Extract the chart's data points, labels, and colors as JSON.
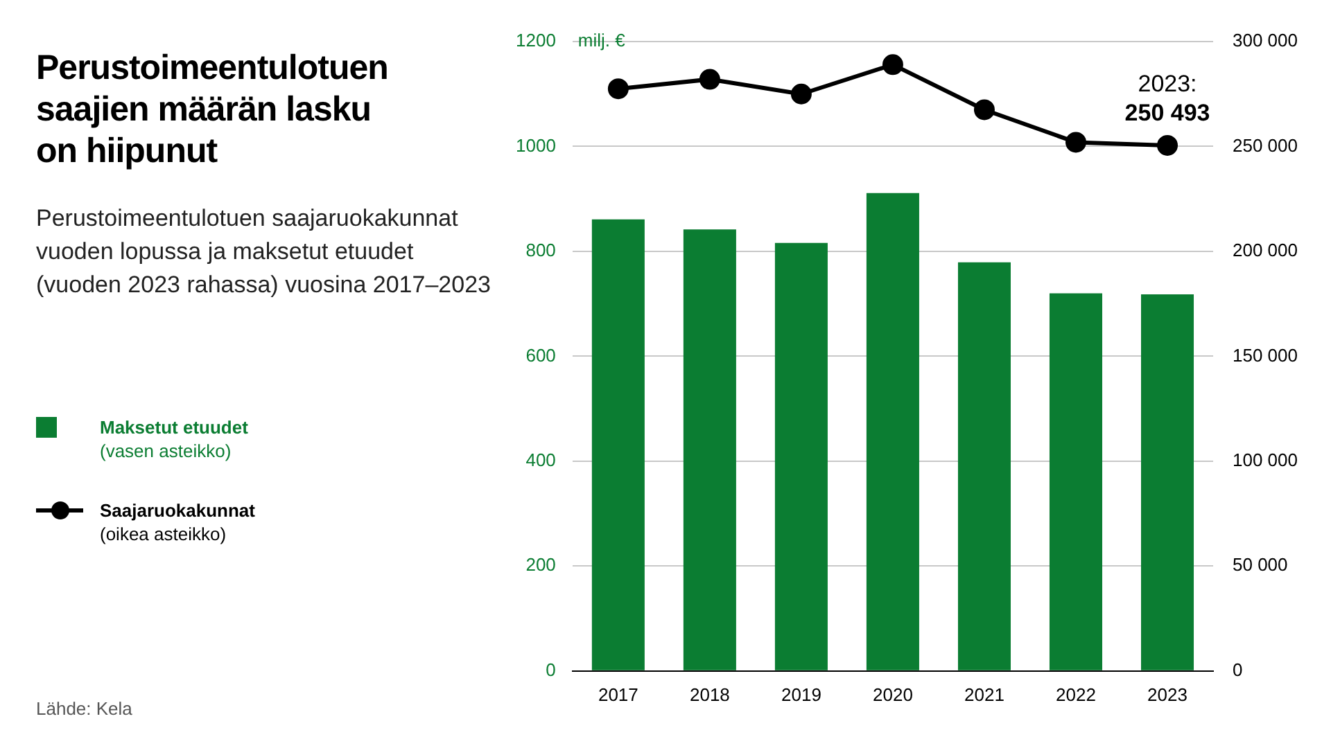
{
  "chart_data": {
    "type": "bar",
    "title": "Perustoimeentulotuen saajien määrän lasku on hiipunut",
    "subtitle": "Perustoimeentulotuen saajaruokakunnat vuoden lopussa ja maksetut etuudet (vuoden 2023 rahassa) vuosina 2017–2023",
    "ylabel": "milj. €",
    "categories": [
      "2017",
      "2018",
      "2019",
      "2020",
      "2021",
      "2022",
      "2023"
    ],
    "series": [
      {
        "name": "Maksetut etuudet\n(vasen asteikko)",
        "color": "#0b7d32",
        "values": [
          861,
          842,
          816,
          911,
          779,
          720,
          718
        ]
      },
      {
        "name": "Saajaruokakunnat\n(oikea asteikko)",
        "type": "line",
        "axis": "y2",
        "color": "#000000",
        "marker": "circle",
        "values": [
          277500,
          282000,
          275000,
          289000,
          267500,
          252000,
          250493
        ]
      }
    ],
    "ylim": [
      0,
      1200
    ],
    "yticks": [
      0,
      200,
      400,
      600,
      800,
      1000,
      1200
    ],
    "y2lim": [
      0,
      300000
    ],
    "y2ticks": [
      {
        "value": 0,
        "label": "0"
      },
      {
        "value": 50000,
        "label": "50 000"
      },
      {
        "value": 100000,
        "label": "100 000"
      },
      {
        "value": 150000,
        "label": "150 000"
      },
      {
        "value": 200000,
        "label": "200 000"
      },
      {
        "value": 250000,
        "label": "250 000"
      },
      {
        "value": 300000,
        "label": "300 000"
      }
    ],
    "grid": "y",
    "legend": "left",
    "annotations": [
      "2023:\n250 493",
      "Lähde: Kela"
    ]
  }
}
